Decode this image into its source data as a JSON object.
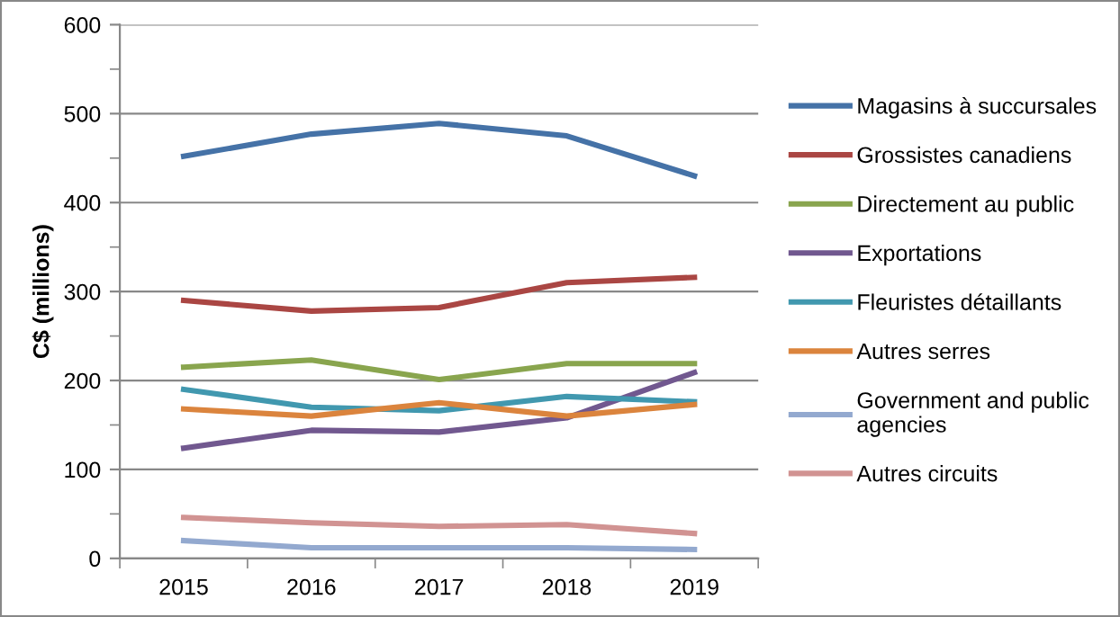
{
  "chart_data": {
    "type": "line",
    "ylabel": "C$ (millions)",
    "categories": [
      "2015",
      "2016",
      "2017",
      "2018",
      "2019"
    ],
    "series": [
      {
        "name": "Magasins à succursales",
        "color": "#4572a7",
        "values": [
          452,
          477,
          489,
          475,
          430
        ]
      },
      {
        "name": "Grossistes canadiens",
        "color": "#aa4643",
        "values": [
          290,
          278,
          282,
          310,
          316
        ]
      },
      {
        "name": "Directement au public",
        "color": "#89a54e",
        "values": [
          215,
          223,
          201,
          219,
          219
        ]
      },
      {
        "name": "Exportations",
        "color": "#71588f",
        "values": [
          124,
          144,
          142,
          158,
          209
        ]
      },
      {
        "name": "Fleuristes détaillants",
        "color": "#4198af",
        "values": [
          190,
          170,
          166,
          182,
          176
        ]
      },
      {
        "name": "Autres serres",
        "color": "#db843d",
        "values": [
          168,
          160,
          175,
          160,
          173
        ]
      },
      {
        "name": "Government and public agencies",
        "color": "#93a9cf",
        "values": [
          20,
          12,
          12,
          12,
          10
        ]
      },
      {
        "name": "Autres circuits",
        "color": "#d19392",
        "values": [
          46,
          40,
          36,
          38,
          28
        ]
      }
    ],
    "ylim": [
      0,
      600
    ],
    "yticks": [
      0,
      {
        "value": 50,
        "label": null
      },
      100,
      {
        "value": 150,
        "label": null
      },
      200,
      {
        "value": 250,
        "label": null
      },
      300,
      {
        "value": 350,
        "label": null
      },
      400,
      {
        "value": 450,
        "label": null
      },
      500,
      {
        "value": 550,
        "label": null
      },
      600
    ],
    "grid": "y",
    "legend": "right",
    "marker": "none",
    "line_style": "solid"
  }
}
